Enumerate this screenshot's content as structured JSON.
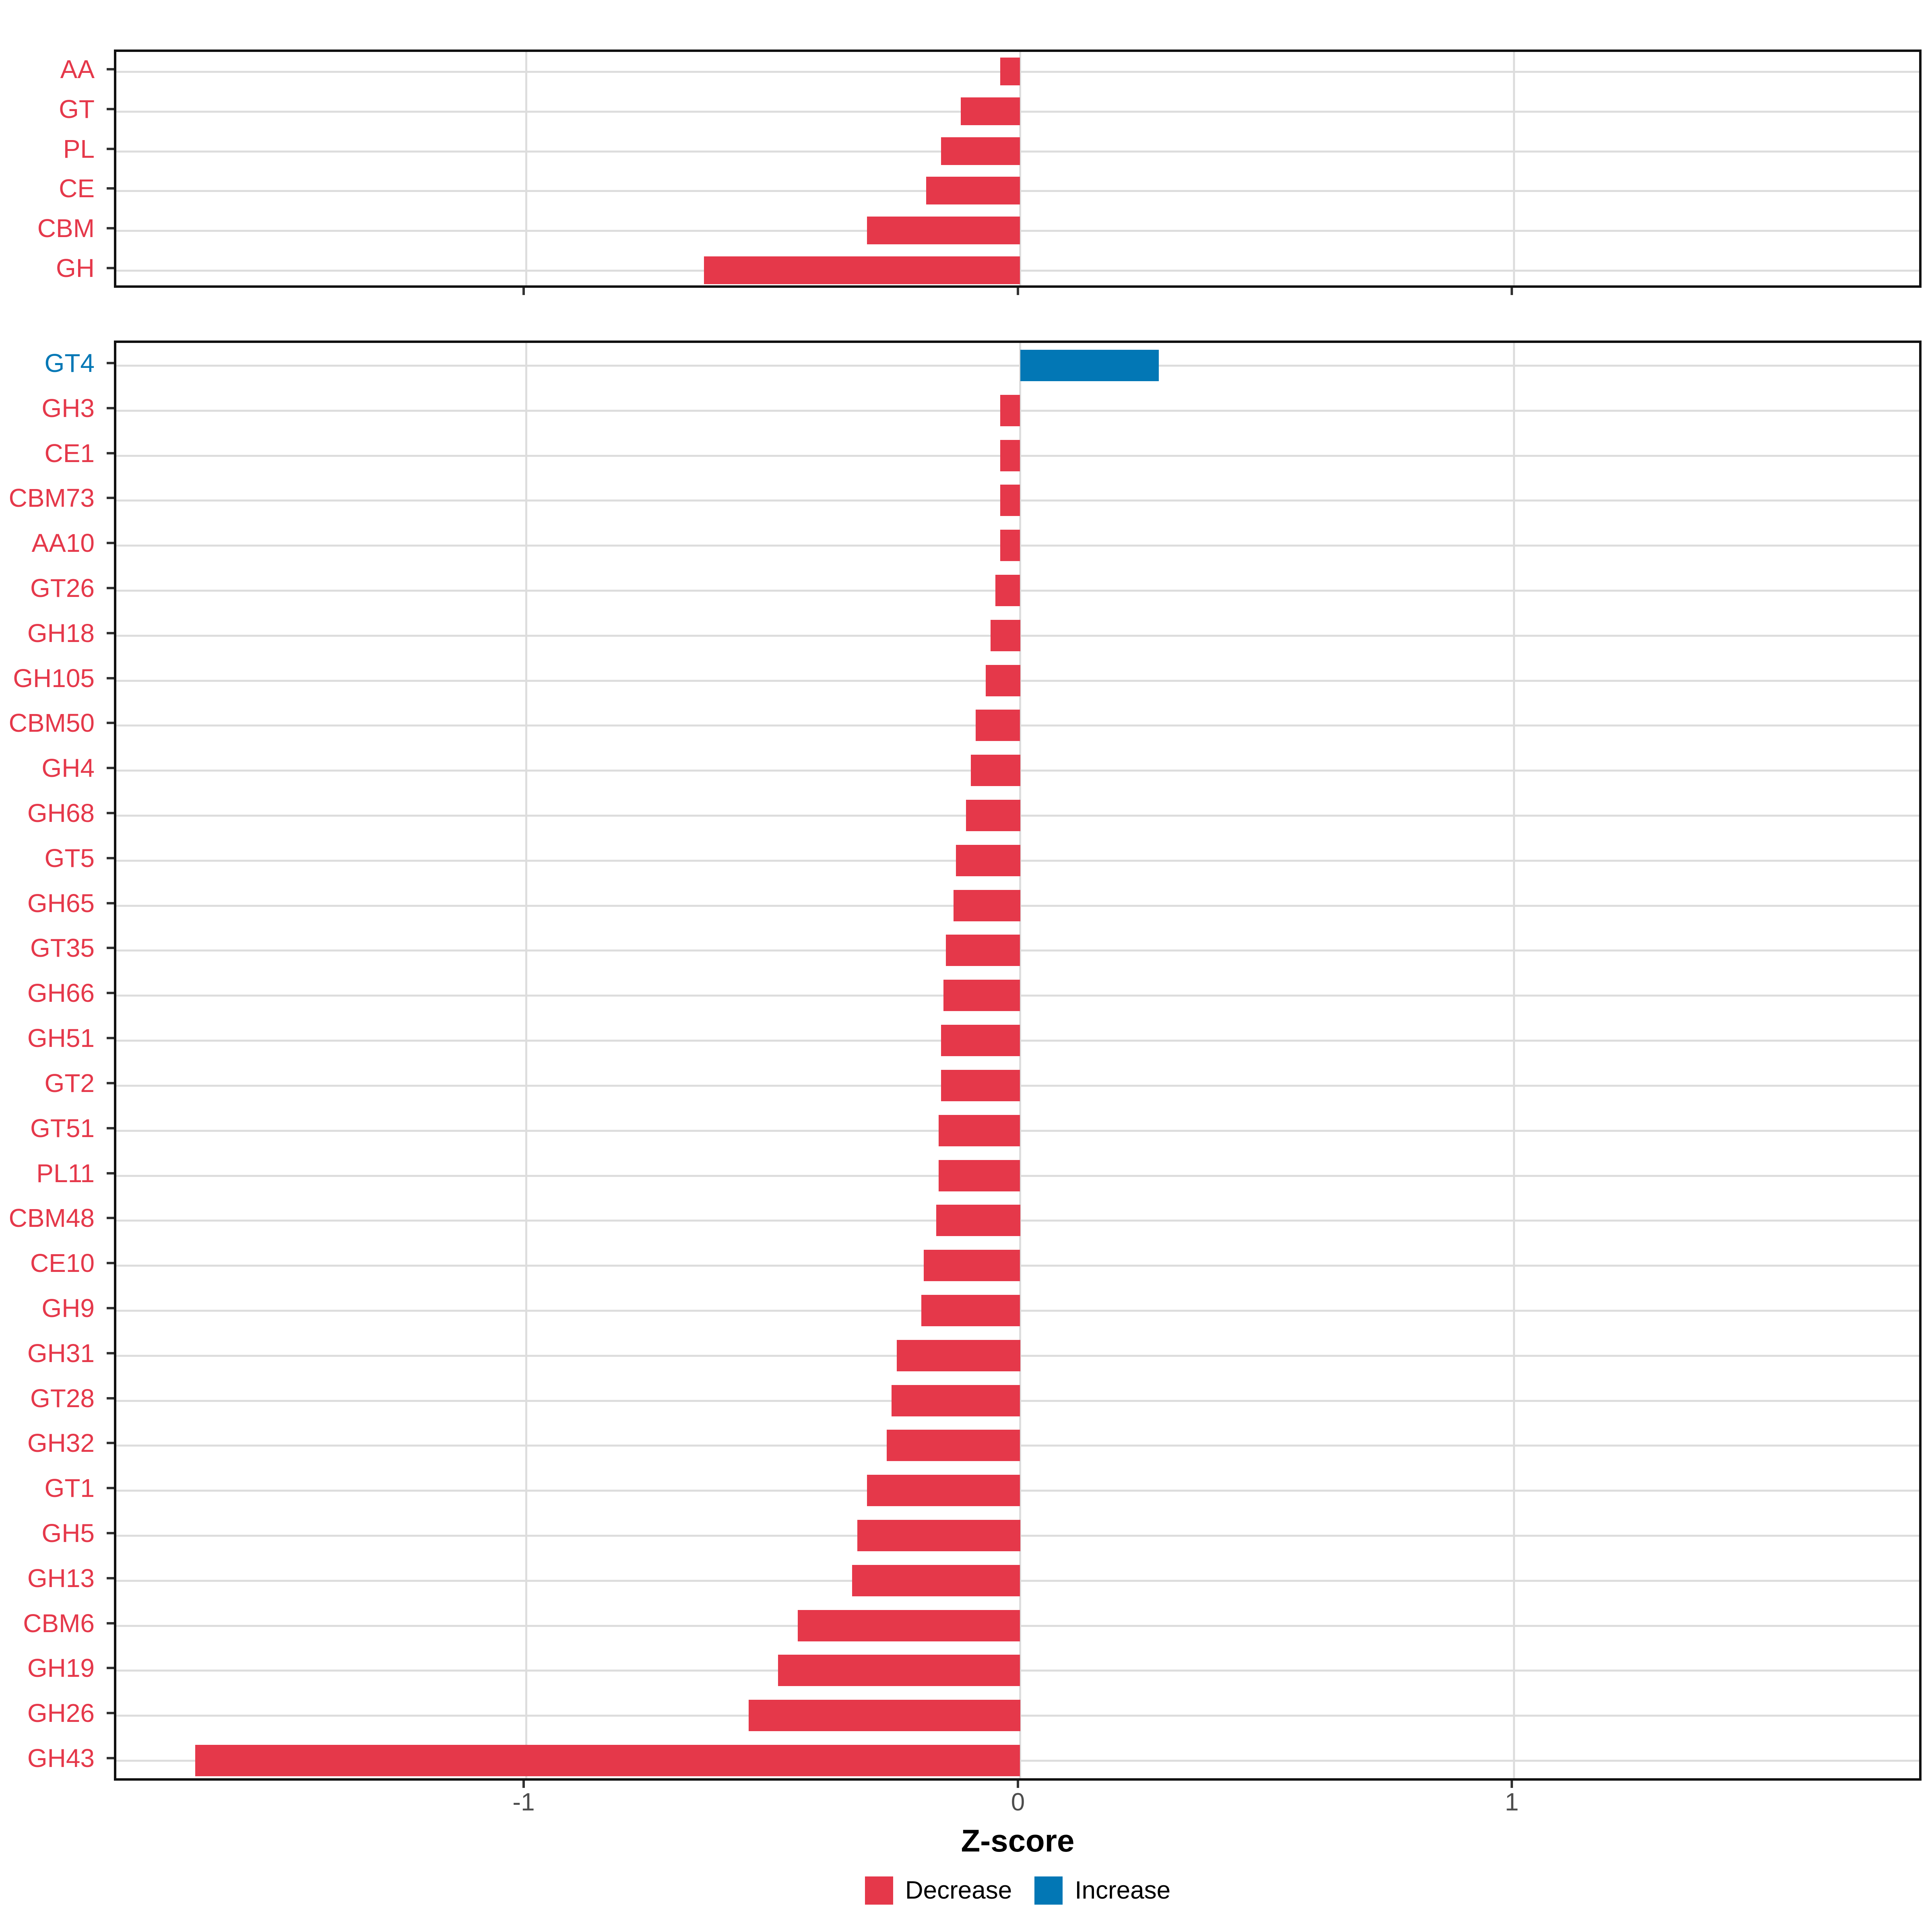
{
  "x_axis": {
    "title": "Z-score",
    "domain": [
      -1.83,
      1.83
    ],
    "ticks": [
      {
        "value": -1,
        "label": "-1"
      },
      {
        "value": 0,
        "label": "0"
      },
      {
        "value": 1,
        "label": "1"
      }
    ]
  },
  "legend": {
    "items": [
      {
        "key": "decrease",
        "label": "Decrease",
        "color": "#E5384A"
      },
      {
        "key": "increase",
        "label": "Increase",
        "color": "#0277B5"
      }
    ]
  },
  "colors": {
    "decrease": "#E5384A",
    "increase": "#0277B5",
    "grid": "#DDDDDD",
    "panel_border": "#111111",
    "tick": "#333333",
    "x_tick_label": "#4D4D4D",
    "axis_title": "#000000"
  },
  "chart_data": [
    {
      "type": "bar",
      "orientation": "horizontal",
      "panel": "top",
      "title": "",
      "xlabel": "Z-score",
      "xlim": [
        -1.83,
        1.83
      ],
      "grid": true,
      "categories": [
        "AA",
        "GT",
        "PL",
        "CE",
        "CBM",
        "GH"
      ],
      "values": [
        -0.04,
        -0.12,
        -0.16,
        -0.19,
        -0.31,
        -0.64
      ],
      "directions": [
        "decrease",
        "decrease",
        "decrease",
        "decrease",
        "decrease",
        "decrease"
      ]
    },
    {
      "type": "bar",
      "orientation": "horizontal",
      "panel": "bottom",
      "title": "",
      "xlabel": "Z-score",
      "xlim": [
        -1.83,
        1.83
      ],
      "grid": true,
      "categories": [
        "GT4",
        "GH3",
        "CE1",
        "CBM73",
        "AA10",
        "GT26",
        "GH18",
        "GH105",
        "CBM50",
        "GH4",
        "GH68",
        "GT5",
        "GH65",
        "GT35",
        "GH66",
        "GH51",
        "GT2",
        "GT51",
        "PL11",
        "CBM48",
        "CE10",
        "GH9",
        "GH31",
        "GT28",
        "GH32",
        "GT1",
        "GH5",
        "GH13",
        "CBM6",
        "GH19",
        "GH26",
        "GH43"
      ],
      "values": [
        0.28,
        -0.04,
        -0.04,
        -0.04,
        -0.04,
        -0.05,
        -0.06,
        -0.07,
        -0.09,
        -0.1,
        -0.11,
        -0.13,
        -0.135,
        -0.15,
        -0.155,
        -0.16,
        -0.16,
        -0.165,
        -0.165,
        -0.17,
        -0.195,
        -0.2,
        -0.25,
        -0.26,
        -0.27,
        -0.31,
        -0.33,
        -0.34,
        -0.45,
        -0.49,
        -0.55,
        -1.67
      ],
      "directions": [
        "increase",
        "decrease",
        "decrease",
        "decrease",
        "decrease",
        "decrease",
        "decrease",
        "decrease",
        "decrease",
        "decrease",
        "decrease",
        "decrease",
        "decrease",
        "decrease",
        "decrease",
        "decrease",
        "decrease",
        "decrease",
        "decrease",
        "decrease",
        "decrease",
        "decrease",
        "decrease",
        "decrease",
        "decrease",
        "decrease",
        "decrease",
        "decrease",
        "decrease",
        "decrease",
        "decrease",
        "decrease"
      ]
    }
  ]
}
